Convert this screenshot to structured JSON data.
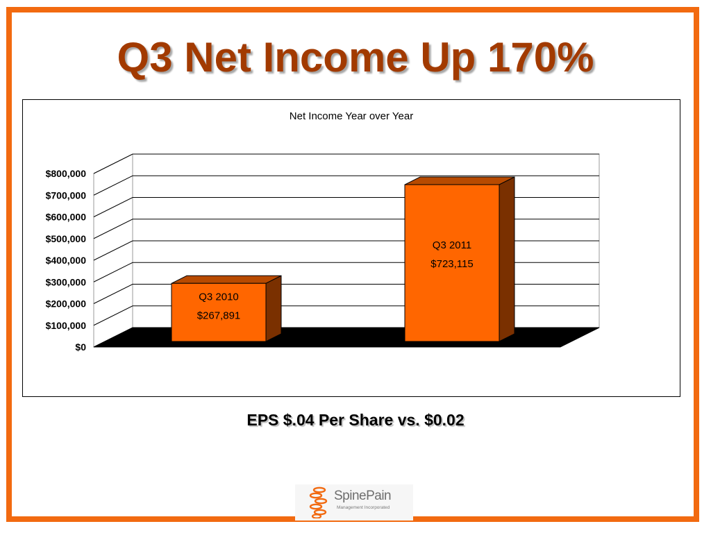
{
  "slide": {
    "title": "Q3 Net Income Up 170%",
    "caption": "EPS $.04 Per Share vs. $0.02",
    "border_color": "#f26a10",
    "title_color": "#a23a00"
  },
  "logo": {
    "name": "SpinePain",
    "tagline": "Management Incorporated",
    "accent_color": "#f26a10"
  },
  "chart_data": {
    "type": "bar",
    "title": "Net Income Year over Year",
    "categories": [
      "Q3 2010",
      "Q3 2011"
    ],
    "values": [
      267891,
      723115
    ],
    "data_labels": [
      [
        "Q3 2010",
        "$267,891"
      ],
      [
        "Q3 2011",
        "$723,115"
      ]
    ],
    "ylim": [
      0,
      800000
    ],
    "y_ticks": [
      0,
      100000,
      200000,
      300000,
      400000,
      500000,
      600000,
      700000,
      800000
    ],
    "y_tick_labels": [
      "$0",
      "$100,000",
      "$200,000",
      "$300,000",
      "$400,000",
      "$500,000",
      "$600,000",
      "$700,000",
      "$800,000"
    ],
    "style": "3d",
    "grid": true,
    "legend": "none",
    "colors": {
      "bar_front": "#ff6600",
      "bar_side": "#7a3000",
      "bar_top": "#b84a00",
      "floor": "#000000"
    }
  }
}
